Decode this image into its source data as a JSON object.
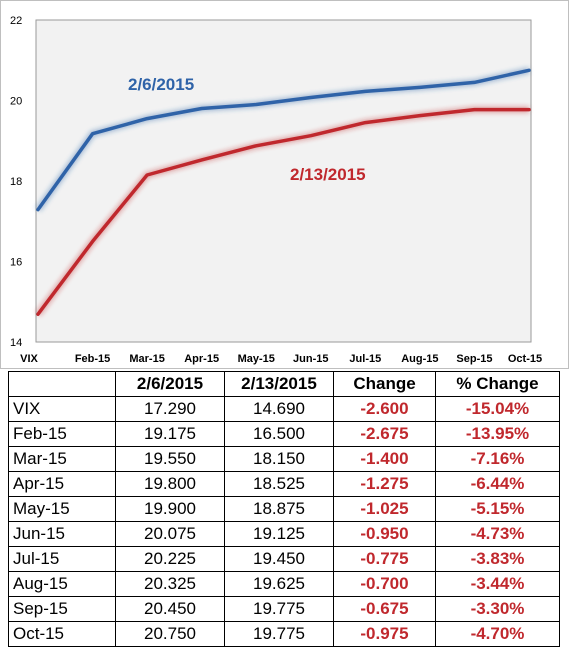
{
  "chart_data": {
    "type": "line",
    "categories": [
      "VIX",
      "Feb-15",
      "Mar-15",
      "Apr-15",
      "May-15",
      "Jun-15",
      "Jul-15",
      "Aug-15",
      "Sep-15",
      "Oct-15"
    ],
    "series": [
      {
        "name": "2/6/2015",
        "values": [
          17.29,
          19.175,
          19.55,
          19.8,
          19.9,
          20.075,
          20.225,
          20.325,
          20.45,
          20.75
        ],
        "color": "#2f63a8"
      },
      {
        "name": "2/13/2015",
        "values": [
          14.69,
          16.5,
          18.15,
          18.525,
          18.875,
          19.125,
          19.45,
          19.625,
          19.775,
          19.775
        ],
        "color": "#c0282d"
      }
    ],
    "yticks": [
      "14",
      "16",
      "18",
      "20",
      "22"
    ],
    "ylim": [
      14,
      22
    ],
    "grid": false,
    "plot_background": "#f2f2f2",
    "legend": "inline labels"
  },
  "table": {
    "headers": [
      "",
      "2/6/2015",
      "2/13/2015",
      "Change",
      "% Change"
    ],
    "rows": [
      [
        "VIX",
        "17.290",
        "14.690",
        "-2.600",
        "-15.04%"
      ],
      [
        "Feb-15",
        "19.175",
        "16.500",
        "-2.675",
        "-13.95%"
      ],
      [
        "Mar-15",
        "19.550",
        "18.150",
        "-1.400",
        "-7.16%"
      ],
      [
        "Apr-15",
        "19.800",
        "18.525",
        "-1.275",
        "-6.44%"
      ],
      [
        "May-15",
        "19.900",
        "18.875",
        "-1.025",
        "-5.15%"
      ],
      [
        "Jun-15",
        "20.075",
        "19.125",
        "-0.950",
        "-4.73%"
      ],
      [
        "Jul-15",
        "20.225",
        "19.450",
        "-0.775",
        "-3.83%"
      ],
      [
        "Aug-15",
        "20.325",
        "19.625",
        "-0.700",
        "-3.44%"
      ],
      [
        "Sep-15",
        "20.450",
        "19.775",
        "-0.675",
        "-3.30%"
      ],
      [
        "Oct-15",
        "20.750",
        "19.775",
        "-0.975",
        "-4.70%"
      ]
    ],
    "negative_color": "#c0282d"
  }
}
